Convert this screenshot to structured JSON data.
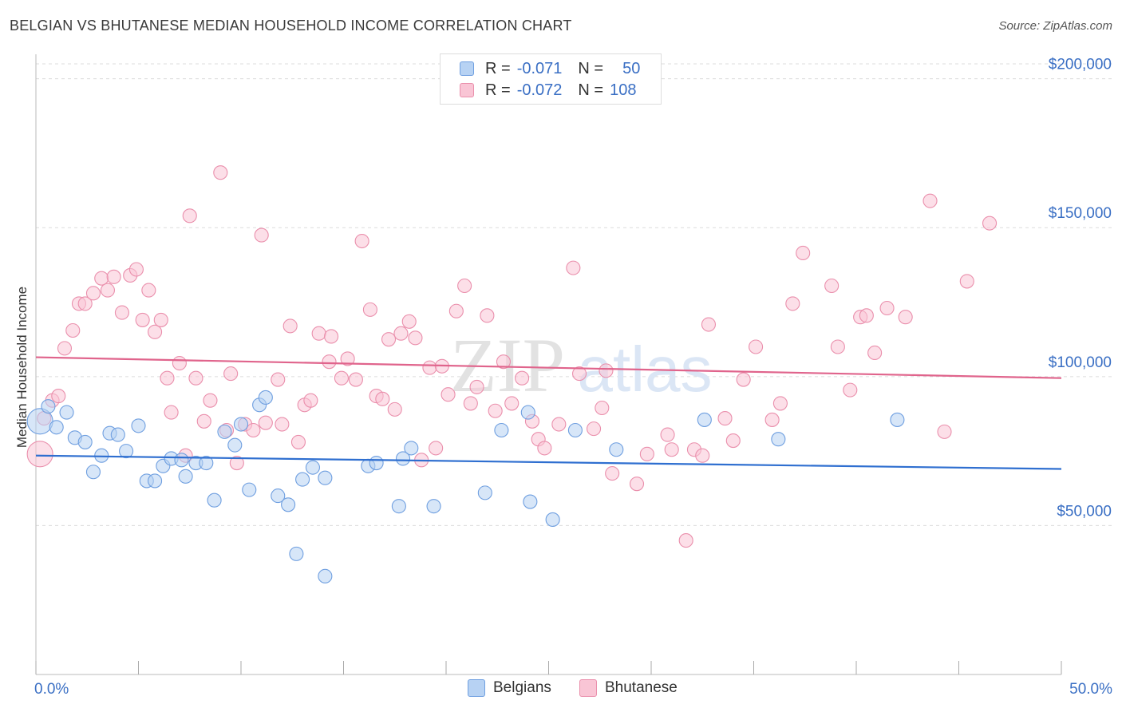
{
  "title": "BELGIAN VS BHUTANESE MEDIAN HOUSEHOLD INCOME CORRELATION CHART",
  "source": "Source: ZipAtlas.com",
  "watermark": {
    "zip": "ZIP",
    "atlas": "atlas"
  },
  "legend": {
    "rows": [
      {
        "r_label": "R =",
        "r_value": "-0.071",
        "n_label": "N =",
        "n_value": "50",
        "color": "#6f9fe0"
      },
      {
        "r_label": "R =",
        "r_value": "-0.072",
        "n_label": "N =",
        "n_value": "108",
        "color": "#ea8fac"
      }
    ]
  },
  "bottom_legend": {
    "blue": "Belgians",
    "pink": "Bhutanese"
  },
  "chart_data": {
    "type": "scatter",
    "ylabel": "Median Household Income",
    "xlabel": "",
    "x_tick_labels": [
      "0.0%",
      "50.0%"
    ],
    "y_tick_labels": [
      "$50,000",
      "$100,000",
      "$150,000",
      "$200,000"
    ],
    "y_ticks": [
      50000,
      100000,
      150000,
      200000
    ],
    "xlim": [
      0,
      50
    ],
    "ylim": [
      0,
      205000
    ],
    "grid": true,
    "series": [
      {
        "name": "Belgians",
        "color": "#6f9fe0",
        "fill": "#b7d2f3",
        "trend": {
          "y_at_x0": 73500,
          "y_at_x50": 69000,
          "color": "#2f6fd0"
        },
        "points": [
          [
            0.2,
            85000
          ],
          [
            0.6,
            90000
          ],
          [
            1.0,
            83000
          ],
          [
            1.5,
            88000
          ],
          [
            1.9,
            79500
          ],
          [
            2.4,
            78000
          ],
          [
            2.8,
            68000
          ],
          [
            3.2,
            73500
          ],
          [
            3.6,
            81000
          ],
          [
            4.0,
            80500
          ],
          [
            4.4,
            75000
          ],
          [
            5.0,
            83500
          ],
          [
            5.4,
            65000
          ],
          [
            5.8,
            65000
          ],
          [
            6.2,
            70000
          ],
          [
            6.6,
            72500
          ],
          [
            7.1,
            72000
          ],
          [
            7.3,
            66500
          ],
          [
            7.8,
            71000
          ],
          [
            8.3,
            71000
          ],
          [
            8.7,
            58500
          ],
          [
            9.2,
            81500
          ],
          [
            9.7,
            77000
          ],
          [
            10.0,
            84000
          ],
          [
            10.4,
            62000
          ],
          [
            10.9,
            90500
          ],
          [
            11.2,
            93000
          ],
          [
            11.8,
            60000
          ],
          [
            12.3,
            57000
          ],
          [
            12.7,
            40500
          ],
          [
            13.0,
            65500
          ],
          [
            13.5,
            69500
          ],
          [
            14.1,
            66000
          ],
          [
            14.1,
            33000
          ],
          [
            16.2,
            70000
          ],
          [
            16.6,
            71000
          ],
          [
            17.7,
            56500
          ],
          [
            17.9,
            72500
          ],
          [
            18.3,
            76000
          ],
          [
            19.4,
            56500
          ],
          [
            21.9,
            61000
          ],
          [
            22.7,
            82000
          ],
          [
            24.0,
            88000
          ],
          [
            24.1,
            58000
          ],
          [
            25.2,
            52000
          ],
          [
            26.3,
            82000
          ],
          [
            28.3,
            75500
          ],
          [
            32.6,
            85500
          ],
          [
            36.2,
            79000
          ],
          [
            42.0,
            85500
          ]
        ]
      },
      {
        "name": "Bhutanese",
        "color": "#ea8fac",
        "fill": "#f9c5d5",
        "trend": {
          "y_at_x0": 106500,
          "y_at_x50": 99500,
          "color": "#e0648c"
        },
        "points": [
          [
            0.2,
            74000
          ],
          [
            0.4,
            86000
          ],
          [
            0.8,
            92000
          ],
          [
            1.1,
            93500
          ],
          [
            1.4,
            109500
          ],
          [
            1.8,
            115500
          ],
          [
            2.1,
            124500
          ],
          [
            2.4,
            124500
          ],
          [
            2.8,
            128000
          ],
          [
            3.2,
            133000
          ],
          [
            3.5,
            129000
          ],
          [
            3.8,
            133500
          ],
          [
            4.2,
            121500
          ],
          [
            4.6,
            134000
          ],
          [
            4.9,
            136000
          ],
          [
            5.2,
            119000
          ],
          [
            5.5,
            129000
          ],
          [
            5.8,
            115000
          ],
          [
            6.1,
            119000
          ],
          [
            6.4,
            99500
          ],
          [
            6.6,
            88000
          ],
          [
            7.0,
            104500
          ],
          [
            7.3,
            73500
          ],
          [
            7.5,
            154000
          ],
          [
            7.8,
            99500
          ],
          [
            8.2,
            85000
          ],
          [
            8.5,
            92000
          ],
          [
            9.0,
            168500
          ],
          [
            9.3,
            82000
          ],
          [
            9.5,
            101000
          ],
          [
            9.8,
            71000
          ],
          [
            10.2,
            84000
          ],
          [
            10.6,
            82000
          ],
          [
            11.0,
            147500
          ],
          [
            11.2,
            84500
          ],
          [
            11.8,
            99000
          ],
          [
            12.0,
            84000
          ],
          [
            12.4,
            117000
          ],
          [
            12.8,
            78000
          ],
          [
            13.1,
            90500
          ],
          [
            13.4,
            92000
          ],
          [
            13.8,
            114500
          ],
          [
            14.3,
            105000
          ],
          [
            14.4,
            113500
          ],
          [
            14.9,
            99500
          ],
          [
            15.2,
            106000
          ],
          [
            15.6,
            99000
          ],
          [
            15.9,
            145500
          ],
          [
            16.3,
            122500
          ],
          [
            16.6,
            93500
          ],
          [
            16.9,
            92500
          ],
          [
            17.2,
            112500
          ],
          [
            17.5,
            89000
          ],
          [
            17.8,
            114500
          ],
          [
            18.2,
            118500
          ],
          [
            18.5,
            113000
          ],
          [
            18.8,
            72000
          ],
          [
            19.2,
            103000
          ],
          [
            19.5,
            76000
          ],
          [
            19.8,
            103500
          ],
          [
            20.1,
            94000
          ],
          [
            20.5,
            122000
          ],
          [
            20.9,
            130500
          ],
          [
            21.2,
            91000
          ],
          [
            21.5,
            96500
          ],
          [
            22.0,
            120500
          ],
          [
            22.4,
            88500
          ],
          [
            22.8,
            105000
          ],
          [
            23.2,
            91000
          ],
          [
            23.7,
            99500
          ],
          [
            24.2,
            85000
          ],
          [
            24.5,
            79000
          ],
          [
            24.8,
            76000
          ],
          [
            25.5,
            84000
          ],
          [
            26.2,
            136500
          ],
          [
            26.5,
            101000
          ],
          [
            27.2,
            82500
          ],
          [
            27.6,
            89500
          ],
          [
            27.8,
            102000
          ],
          [
            28.1,
            67500
          ],
          [
            29.3,
            64000
          ],
          [
            29.8,
            74000
          ],
          [
            30.8,
            80500
          ],
          [
            31.0,
            75500
          ],
          [
            31.7,
            45000
          ],
          [
            32.1,
            75500
          ],
          [
            32.5,
            73500
          ],
          [
            32.8,
            117500
          ],
          [
            33.6,
            86000
          ],
          [
            34.0,
            78500
          ],
          [
            34.5,
            99000
          ],
          [
            35.1,
            110000
          ],
          [
            35.9,
            85500
          ],
          [
            36.3,
            91000
          ],
          [
            36.9,
            124500
          ],
          [
            37.4,
            141500
          ],
          [
            38.8,
            130500
          ],
          [
            39.1,
            110000
          ],
          [
            39.7,
            95500
          ],
          [
            40.2,
            120000
          ],
          [
            40.5,
            120500
          ],
          [
            40.9,
            108000
          ],
          [
            41.5,
            123000
          ],
          [
            42.4,
            120000
          ],
          [
            43.6,
            159000
          ],
          [
            44.3,
            81500
          ],
          [
            45.4,
            132000
          ],
          [
            46.5,
            151500
          ]
        ]
      }
    ]
  }
}
